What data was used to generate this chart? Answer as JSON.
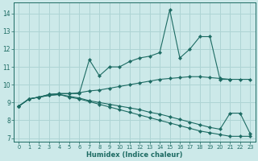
{
  "xlabel": "Humidex (Indice chaleur)",
  "xlim": [
    -0.5,
    23.5
  ],
  "ylim": [
    6.8,
    14.6
  ],
  "yticks": [
    7,
    8,
    9,
    10,
    11,
    12,
    13,
    14
  ],
  "xticks": [
    0,
    1,
    2,
    3,
    4,
    5,
    6,
    7,
    8,
    9,
    10,
    11,
    12,
    13,
    14,
    15,
    16,
    17,
    18,
    19,
    20,
    21,
    22,
    23
  ],
  "background_color": "#cce9e9",
  "grid_color": "#aed4d4",
  "line_color": "#1d6b63",
  "curves": [
    {
      "x": [
        0,
        1,
        2,
        3,
        4,
        5,
        6,
        7,
        8,
        9,
        10,
        11,
        12,
        13,
        14,
        15,
        16,
        17,
        18,
        19,
        20,
        21
      ],
      "y": [
        8.8,
        9.2,
        9.3,
        9.45,
        9.5,
        9.5,
        9.5,
        11.4,
        10.5,
        11.0,
        11.0,
        11.3,
        11.5,
        11.6,
        11.8,
        14.2,
        11.5,
        12.0,
        12.7,
        12.7,
        10.3,
        10.3
      ]
    },
    {
      "x": [
        0,
        1,
        2,
        3,
        4,
        5,
        6,
        7,
        8,
        9,
        10,
        11,
        12,
        13,
        14,
        15,
        16,
        17,
        18,
        19,
        20,
        21,
        22,
        23
      ],
      "y": [
        8.8,
        9.2,
        9.3,
        9.45,
        9.5,
        9.5,
        9.55,
        9.65,
        9.7,
        9.8,
        9.9,
        10.0,
        10.1,
        10.2,
        10.3,
        10.35,
        10.4,
        10.45,
        10.45,
        10.4,
        10.35,
        10.3,
        10.3,
        10.3
      ]
    },
    {
      "x": [
        0,
        1,
        2,
        3,
        4,
        5,
        6,
        7,
        8,
        9,
        10,
        11,
        12,
        13,
        14,
        15,
        16,
        17,
        18,
        19,
        20,
        21,
        22,
        23
      ],
      "y": [
        8.8,
        9.2,
        9.3,
        9.4,
        9.45,
        9.35,
        9.25,
        9.1,
        9.0,
        8.9,
        8.8,
        8.7,
        8.6,
        8.45,
        8.35,
        8.2,
        8.05,
        7.9,
        7.75,
        7.6,
        7.5,
        8.4,
        8.4,
        7.25
      ]
    },
    {
      "x": [
        0,
        1,
        2,
        3,
        4,
        5,
        6,
        7,
        8,
        9,
        10,
        11,
        12,
        13,
        14,
        15,
        16,
        17,
        18,
        19,
        20,
        21,
        22,
        23
      ],
      "y": [
        8.8,
        9.2,
        9.3,
        9.4,
        9.45,
        9.3,
        9.2,
        9.05,
        8.9,
        8.75,
        8.6,
        8.45,
        8.3,
        8.15,
        8.0,
        7.85,
        7.7,
        7.55,
        7.4,
        7.3,
        7.2,
        7.1,
        7.1,
        7.1
      ]
    }
  ]
}
